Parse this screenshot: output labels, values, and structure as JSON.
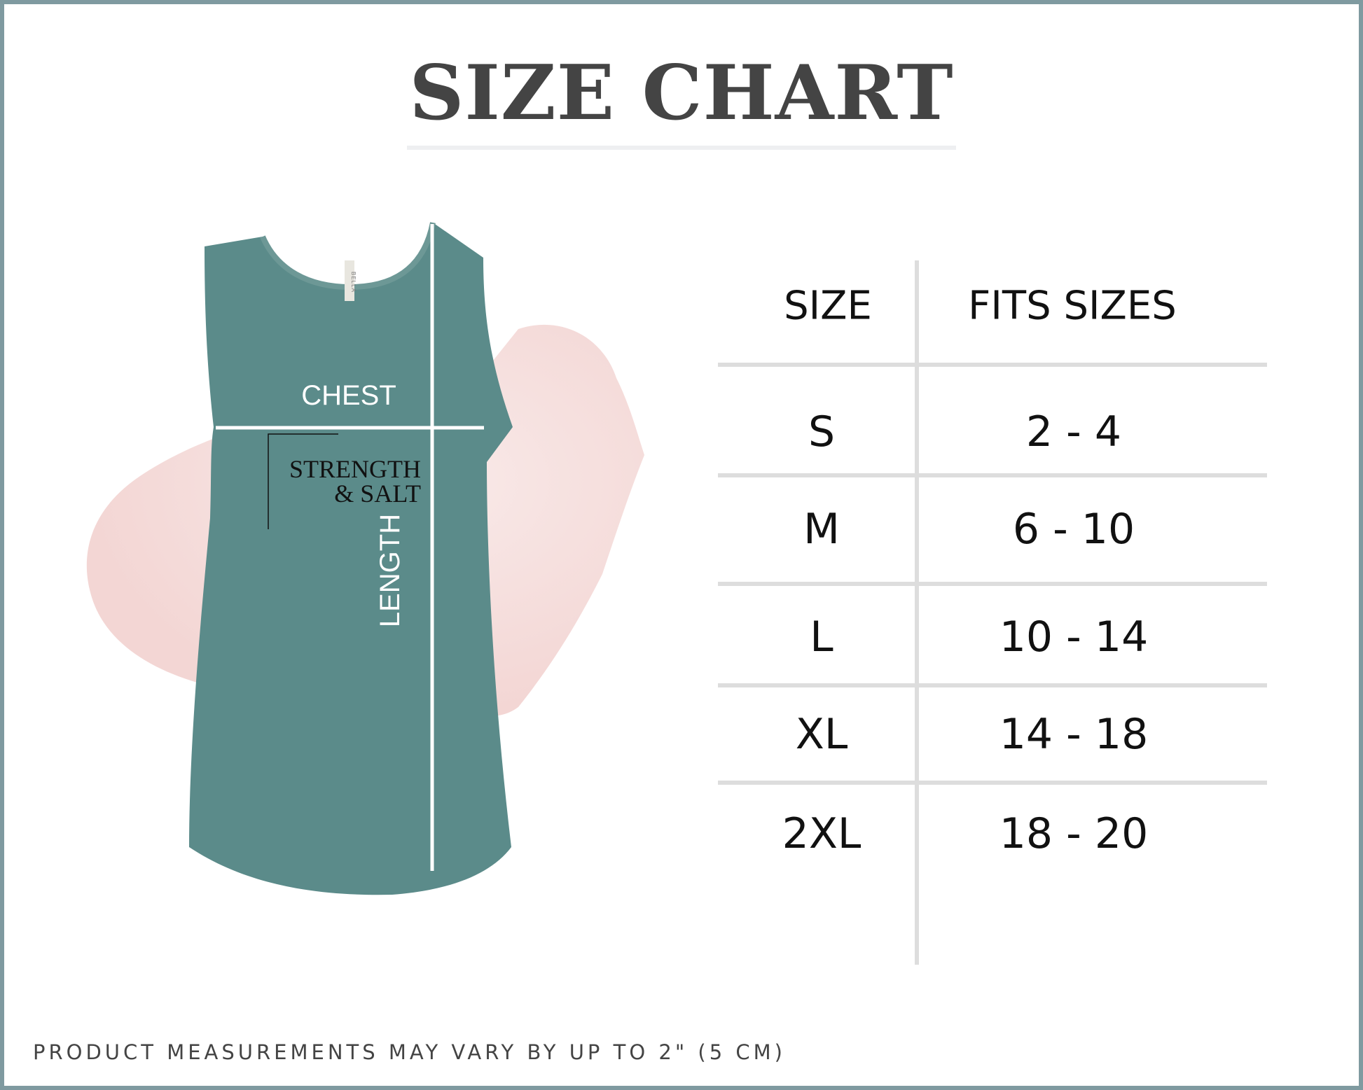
{
  "title": "SIZE CHART",
  "garment": {
    "chest_label": "CHEST",
    "length_label": "LENGTH",
    "print_text": [
      "STRENGTH",
      "& SALT"
    ],
    "tag_text": "BELLA",
    "garment_color": "#5b8b8a",
    "splash_color": "#f3d6d4"
  },
  "table": {
    "headers": [
      "SIZE",
      "FITS SIZES"
    ],
    "rows": [
      {
        "size": "S",
        "fits": "2 - 4"
      },
      {
        "size": "M",
        "fits": "6 - 10"
      },
      {
        "size": "L",
        "fits": "10 - 14"
      },
      {
        "size": "XL",
        "fits": "14 - 18"
      },
      {
        "size": "2XL",
        "fits": "18 - 20"
      }
    ]
  },
  "footer_note": "PRODUCT MEASUREMENTS MAY VARY BY UP TO 2\" (5 CM)"
}
